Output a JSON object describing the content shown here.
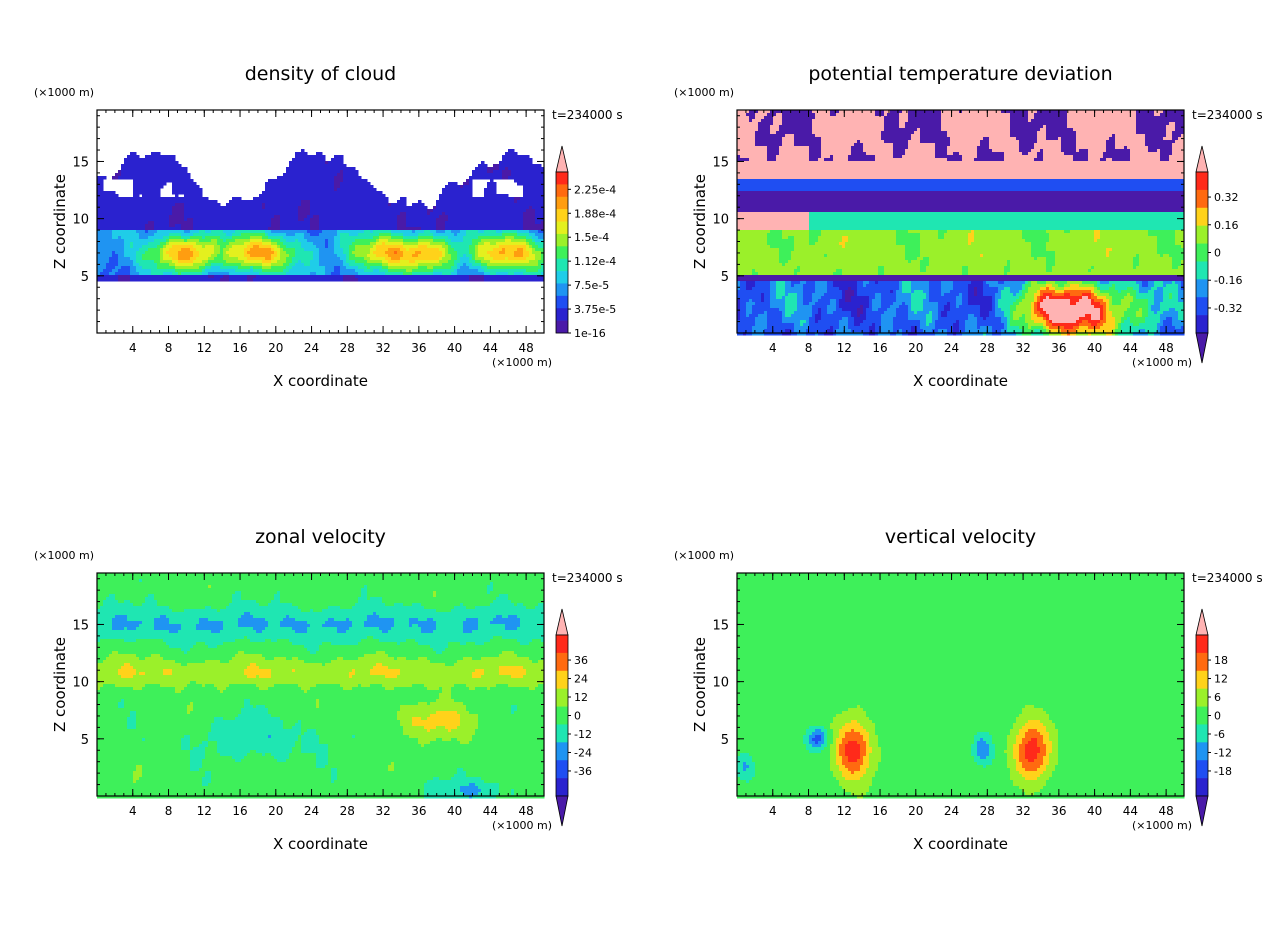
{
  "chart_data": [
    {
      "type": "heatmap",
      "title": "density of cloud",
      "xlabel": "X coordinate",
      "ylabel": "Z coordinate",
      "x_unit": "(×1000 m)",
      "y_unit": "(×1000 m)",
      "time_label": "t=234000 s",
      "xlim": [
        0,
        50
      ],
      "ylim": [
        0,
        19.5
      ],
      "x_ticks": [
        4,
        8,
        12,
        16,
        20,
        24,
        28,
        32,
        36,
        40,
        44,
        48
      ],
      "y_ticks": [
        5,
        10,
        15
      ],
      "colorbar": {
        "labels": [
          "2.25e-4",
          "1.88e-4",
          "1.5e-4",
          "1.12e-4",
          "7.5e-5",
          "3.75e-5",
          "1e-16"
        ],
        "colors": [
          "#ffb3b3",
          "#ff2a1a",
          "#ff6a10",
          "#ff9d10",
          "#ffd21a",
          "#e4f01e",
          "#9bf02a",
          "#3ef05a",
          "#1fe6b2",
          "#1fcde8",
          "#1f94f2",
          "#1f4ef2",
          "#2a22cf",
          "#4a1aa8"
        ],
        "lower_extend": false
      },
      "fields": {
        "cloud_base_km": 4.5,
        "cloud_top_km": 16,
        "dense_layer_km": [
          5,
          9
        ],
        "cores_x_km": [
          10,
          18,
          33,
          36,
          46
        ]
      }
    },
    {
      "type": "heatmap",
      "title": "potential temperature deviation",
      "xlabel": "X coordinate",
      "ylabel": "Z coordinate",
      "x_unit": "(×1000 m)",
      "y_unit": "(×1000 m)",
      "time_label": "t=234000 s",
      "xlim": [
        0,
        50
      ],
      "ylim": [
        0,
        19.5
      ],
      "x_ticks": [
        4,
        8,
        12,
        16,
        20,
        24,
        28,
        32,
        36,
        40,
        44,
        48
      ],
      "y_ticks": [
        5,
        10,
        15
      ],
      "colorbar": {
        "labels": [
          "0.32",
          "0.16",
          "0",
          "-0.16",
          "-0.32"
        ],
        "colors": [
          "#ffb3b3",
          "#ff2a1a",
          "#ff6a10",
          "#ffd21a",
          "#9bf02a",
          "#3ef05a",
          "#1fe6b2",
          "#1f94f2",
          "#1f4ef2",
          "#2a22cf",
          "#4a1aa8"
        ],
        "lower_extend": true
      },
      "fields": {
        "warm_anomaly_x_km": [
          32,
          45
        ],
        "warm_anomaly_z_km": [
          0,
          4
        ]
      }
    },
    {
      "type": "heatmap",
      "title": "zonal velocity",
      "xlabel": "X coordinate",
      "ylabel": "Z coordinate",
      "x_unit": "(×1000 m)",
      "y_unit": "(×1000 m)",
      "time_label": "t=234000 s",
      "xlim": [
        0,
        50
      ],
      "ylim": [
        0,
        19.5
      ],
      "x_ticks": [
        4,
        8,
        12,
        16,
        20,
        24,
        28,
        32,
        36,
        40,
        44,
        48
      ],
      "y_ticks": [
        5,
        10,
        15
      ],
      "colorbar": {
        "labels": [
          "36",
          "24",
          "12",
          "0",
          "-12",
          "-24",
          "-36"
        ],
        "colors": [
          "#ffb3b3",
          "#ff2a1a",
          "#ff6a10",
          "#ffd21a",
          "#9bf02a",
          "#3ef05a",
          "#1fe6b2",
          "#1f94f2",
          "#1f4ef2",
          "#2a22cf",
          "#4a1aa8"
        ],
        "lower_extend": true
      },
      "fields": {
        "positive_band_z_km": [
          9,
          12
        ],
        "negative_band_z_km": [
          13,
          17
        ]
      }
    },
    {
      "type": "heatmap",
      "title": "vertical velocity",
      "xlabel": "X coordinate",
      "ylabel": "Z coordinate",
      "x_unit": "(×1000 m)",
      "y_unit": "(×1000 m)",
      "time_label": "t=234000 s",
      "xlim": [
        0,
        50
      ],
      "ylim": [
        0,
        19.5
      ],
      "x_ticks": [
        4,
        8,
        12,
        16,
        20,
        24,
        28,
        32,
        36,
        40,
        44,
        48
      ],
      "y_ticks": [
        5,
        10,
        15
      ],
      "colorbar": {
        "labels": [
          "18",
          "12",
          "6",
          "0",
          "-6",
          "-12",
          "-18"
        ],
        "colors": [
          "#ffb3b3",
          "#ff2a1a",
          "#ff6a10",
          "#ffd21a",
          "#9bf02a",
          "#3ef05a",
          "#1fe6b2",
          "#1f94f2",
          "#1f4ef2",
          "#2a22cf",
          "#4a1aa8"
        ],
        "lower_extend": true
      },
      "fields": {
        "updraft_centers_x_km": [
          13,
          33
        ],
        "updraft_center_z_km": 4
      }
    }
  ]
}
